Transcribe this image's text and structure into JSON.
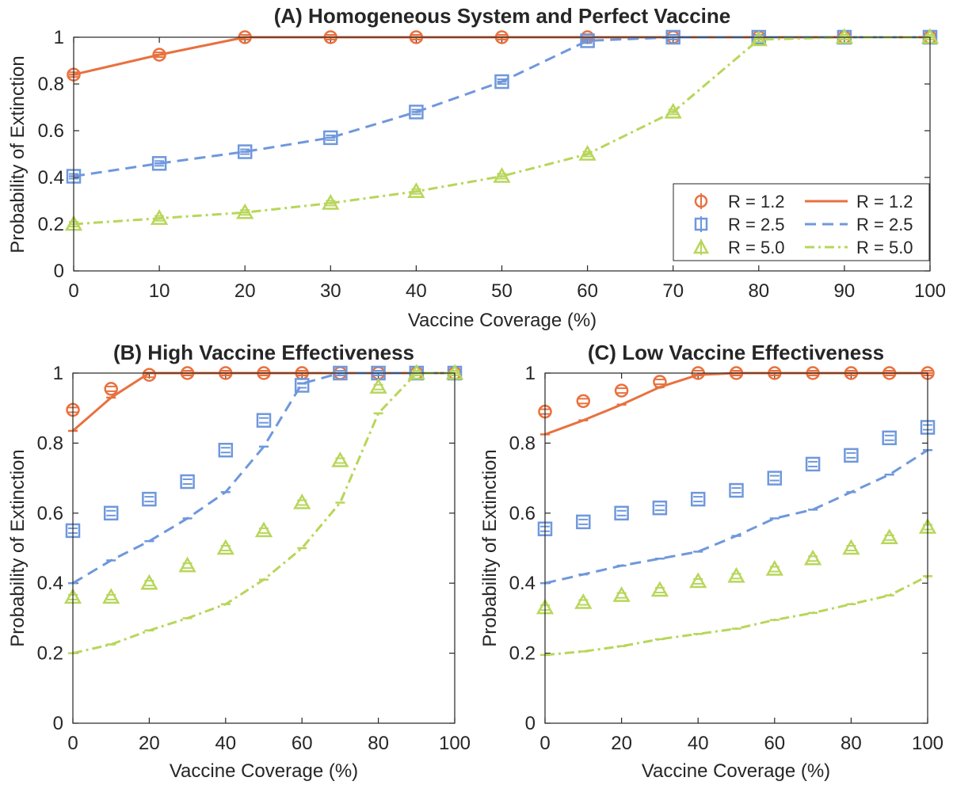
{
  "colors": {
    "r12": "#e8713f",
    "r25": "#6f98dc",
    "r50": "#b8d65a",
    "axis": "#262626"
  },
  "chart_data": [
    {
      "type": "line",
      "title": "(A) Homogeneous System and Perfect Vaccine",
      "xlabel": "Vaccine Coverage (%)",
      "ylabel": "Probability of Extinction",
      "xlim": [
        0,
        100
      ],
      "ylim": [
        0,
        1
      ],
      "xticks": [
        "0",
        "10",
        "20",
        "30",
        "40",
        "50",
        "60",
        "70",
        "80",
        "90",
        "100"
      ],
      "yticks": [
        "0",
        "0.2",
        "0.4",
        "0.6",
        "0.8",
        "1"
      ],
      "legend": {
        "location": "bottom-right",
        "entries": [
          "R = 1.2",
          "R = 2.5",
          "R = 5.0",
          "R = 1.2",
          "R = 2.5",
          "R = 5.0"
        ]
      },
      "markers_x": [
        0,
        10,
        20,
        30,
        40,
        50,
        60,
        70,
        80,
        90,
        100
      ],
      "lines_x": [
        0,
        10,
        20,
        30,
        40,
        50,
        60,
        70,
        80,
        90,
        100
      ],
      "series": [
        {
          "key": "r12",
          "marker": "circle",
          "dash": "solid",
          "markers": [
            0.84,
            0.925,
            1,
            1,
            1,
            1,
            1,
            1,
            1,
            1,
            1
          ],
          "line": [
            0.84,
            0.925,
            1,
            1,
            1,
            1,
            1,
            1,
            1,
            1,
            1
          ]
        },
        {
          "key": "r25",
          "marker": "square",
          "dash": "dash",
          "markers": [
            0.405,
            0.46,
            0.51,
            0.57,
            0.68,
            0.81,
            0.985,
            1,
            1,
            1,
            1
          ],
          "line": [
            0.405,
            0.46,
            0.51,
            0.57,
            0.68,
            0.81,
            0.985,
            1,
            1,
            1,
            1
          ]
        },
        {
          "key": "r50",
          "marker": "triangle",
          "dash": "dashdot",
          "markers": [
            0.2,
            0.225,
            0.25,
            0.29,
            0.34,
            0.405,
            0.5,
            0.68,
            0.99,
            1,
            1
          ],
          "line": [
            0.2,
            0.225,
            0.25,
            0.29,
            0.34,
            0.405,
            0.5,
            0.68,
            0.99,
            1,
            1
          ]
        }
      ]
    },
    {
      "type": "line",
      "title": "(B) High Vaccine Effectiveness",
      "xlabel": "Vaccine Coverage (%)",
      "ylabel": "Probability of Extinction",
      "xlim": [
        0,
        100
      ],
      "ylim": [
        0,
        1
      ],
      "xticks": [
        "0",
        "20",
        "40",
        "60",
        "80",
        "100"
      ],
      "yticks": [
        "0",
        "0.2",
        "0.4",
        "0.6",
        "0.8",
        "1"
      ],
      "markers_x": [
        0,
        10,
        20,
        30,
        40,
        50,
        60,
        70,
        80,
        90,
        100
      ],
      "lines_x": [
        0,
        10,
        20,
        30,
        40,
        50,
        60,
        70,
        80,
        90,
        100
      ],
      "series": [
        {
          "key": "r12",
          "marker": "circle",
          "dash": "solid",
          "markers": [
            0.895,
            0.955,
            0.995,
            1,
            1,
            1,
            1,
            1,
            1,
            1,
            1
          ],
          "line": [
            0.835,
            0.93,
            1,
            1,
            1,
            1,
            1,
            1,
            1,
            1,
            1
          ]
        },
        {
          "key": "r25",
          "marker": "square",
          "dash": "dash",
          "markers": [
            0.55,
            0.6,
            0.64,
            0.69,
            0.78,
            0.865,
            0.965,
            1,
            1,
            1,
            1
          ],
          "line": [
            0.4,
            0.465,
            0.52,
            0.585,
            0.66,
            0.79,
            0.97,
            1,
            1,
            1,
            1
          ]
        },
        {
          "key": "r50",
          "marker": "triangle",
          "dash": "dashdot",
          "markers": [
            0.36,
            0.36,
            0.4,
            0.45,
            0.5,
            0.55,
            0.63,
            0.75,
            0.96,
            1,
            1
          ],
          "line": [
            0.2,
            0.225,
            0.265,
            0.3,
            0.34,
            0.41,
            0.5,
            0.63,
            0.885,
            1,
            1
          ]
        }
      ]
    },
    {
      "type": "line",
      "title": "(C) Low Vaccine Effectiveness",
      "xlabel": "Vaccine Coverage (%)",
      "ylabel": "Probability of Extinction",
      "xlim": [
        0,
        100
      ],
      "ylim": [
        0,
        1
      ],
      "xticks": [
        "0",
        "20",
        "40",
        "60",
        "80",
        "100"
      ],
      "yticks": [
        "0",
        "0.2",
        "0.4",
        "0.6",
        "0.8",
        "1"
      ],
      "markers_x": [
        0,
        10,
        20,
        30,
        40,
        50,
        60,
        70,
        80,
        90,
        100
      ],
      "lines_x": [
        0,
        10,
        20,
        30,
        40,
        50,
        60,
        70,
        80,
        90,
        100
      ],
      "series": [
        {
          "key": "r12",
          "marker": "circle",
          "dash": "solid",
          "markers": [
            0.89,
            0.92,
            0.95,
            0.975,
            1,
            1,
            1,
            1,
            1,
            1,
            1
          ],
          "line": [
            0.825,
            0.865,
            0.91,
            0.96,
            0.995,
            1,
            1,
            1,
            1,
            1,
            1
          ]
        },
        {
          "key": "r25",
          "marker": "square",
          "dash": "dash",
          "markers": [
            0.555,
            0.575,
            0.6,
            0.615,
            0.64,
            0.665,
            0.7,
            0.74,
            0.765,
            0.815,
            0.845
          ],
          "line": [
            0.4,
            0.425,
            0.45,
            0.47,
            0.49,
            0.535,
            0.585,
            0.61,
            0.66,
            0.71,
            0.78
          ]
        },
        {
          "key": "r50",
          "marker": "triangle",
          "dash": "dashdot",
          "markers": [
            0.33,
            0.345,
            0.365,
            0.38,
            0.405,
            0.42,
            0.44,
            0.47,
            0.5,
            0.53,
            0.56
          ],
          "line": [
            0.195,
            0.205,
            0.22,
            0.24,
            0.255,
            0.27,
            0.295,
            0.315,
            0.34,
            0.365,
            0.42
          ]
        }
      ]
    }
  ]
}
